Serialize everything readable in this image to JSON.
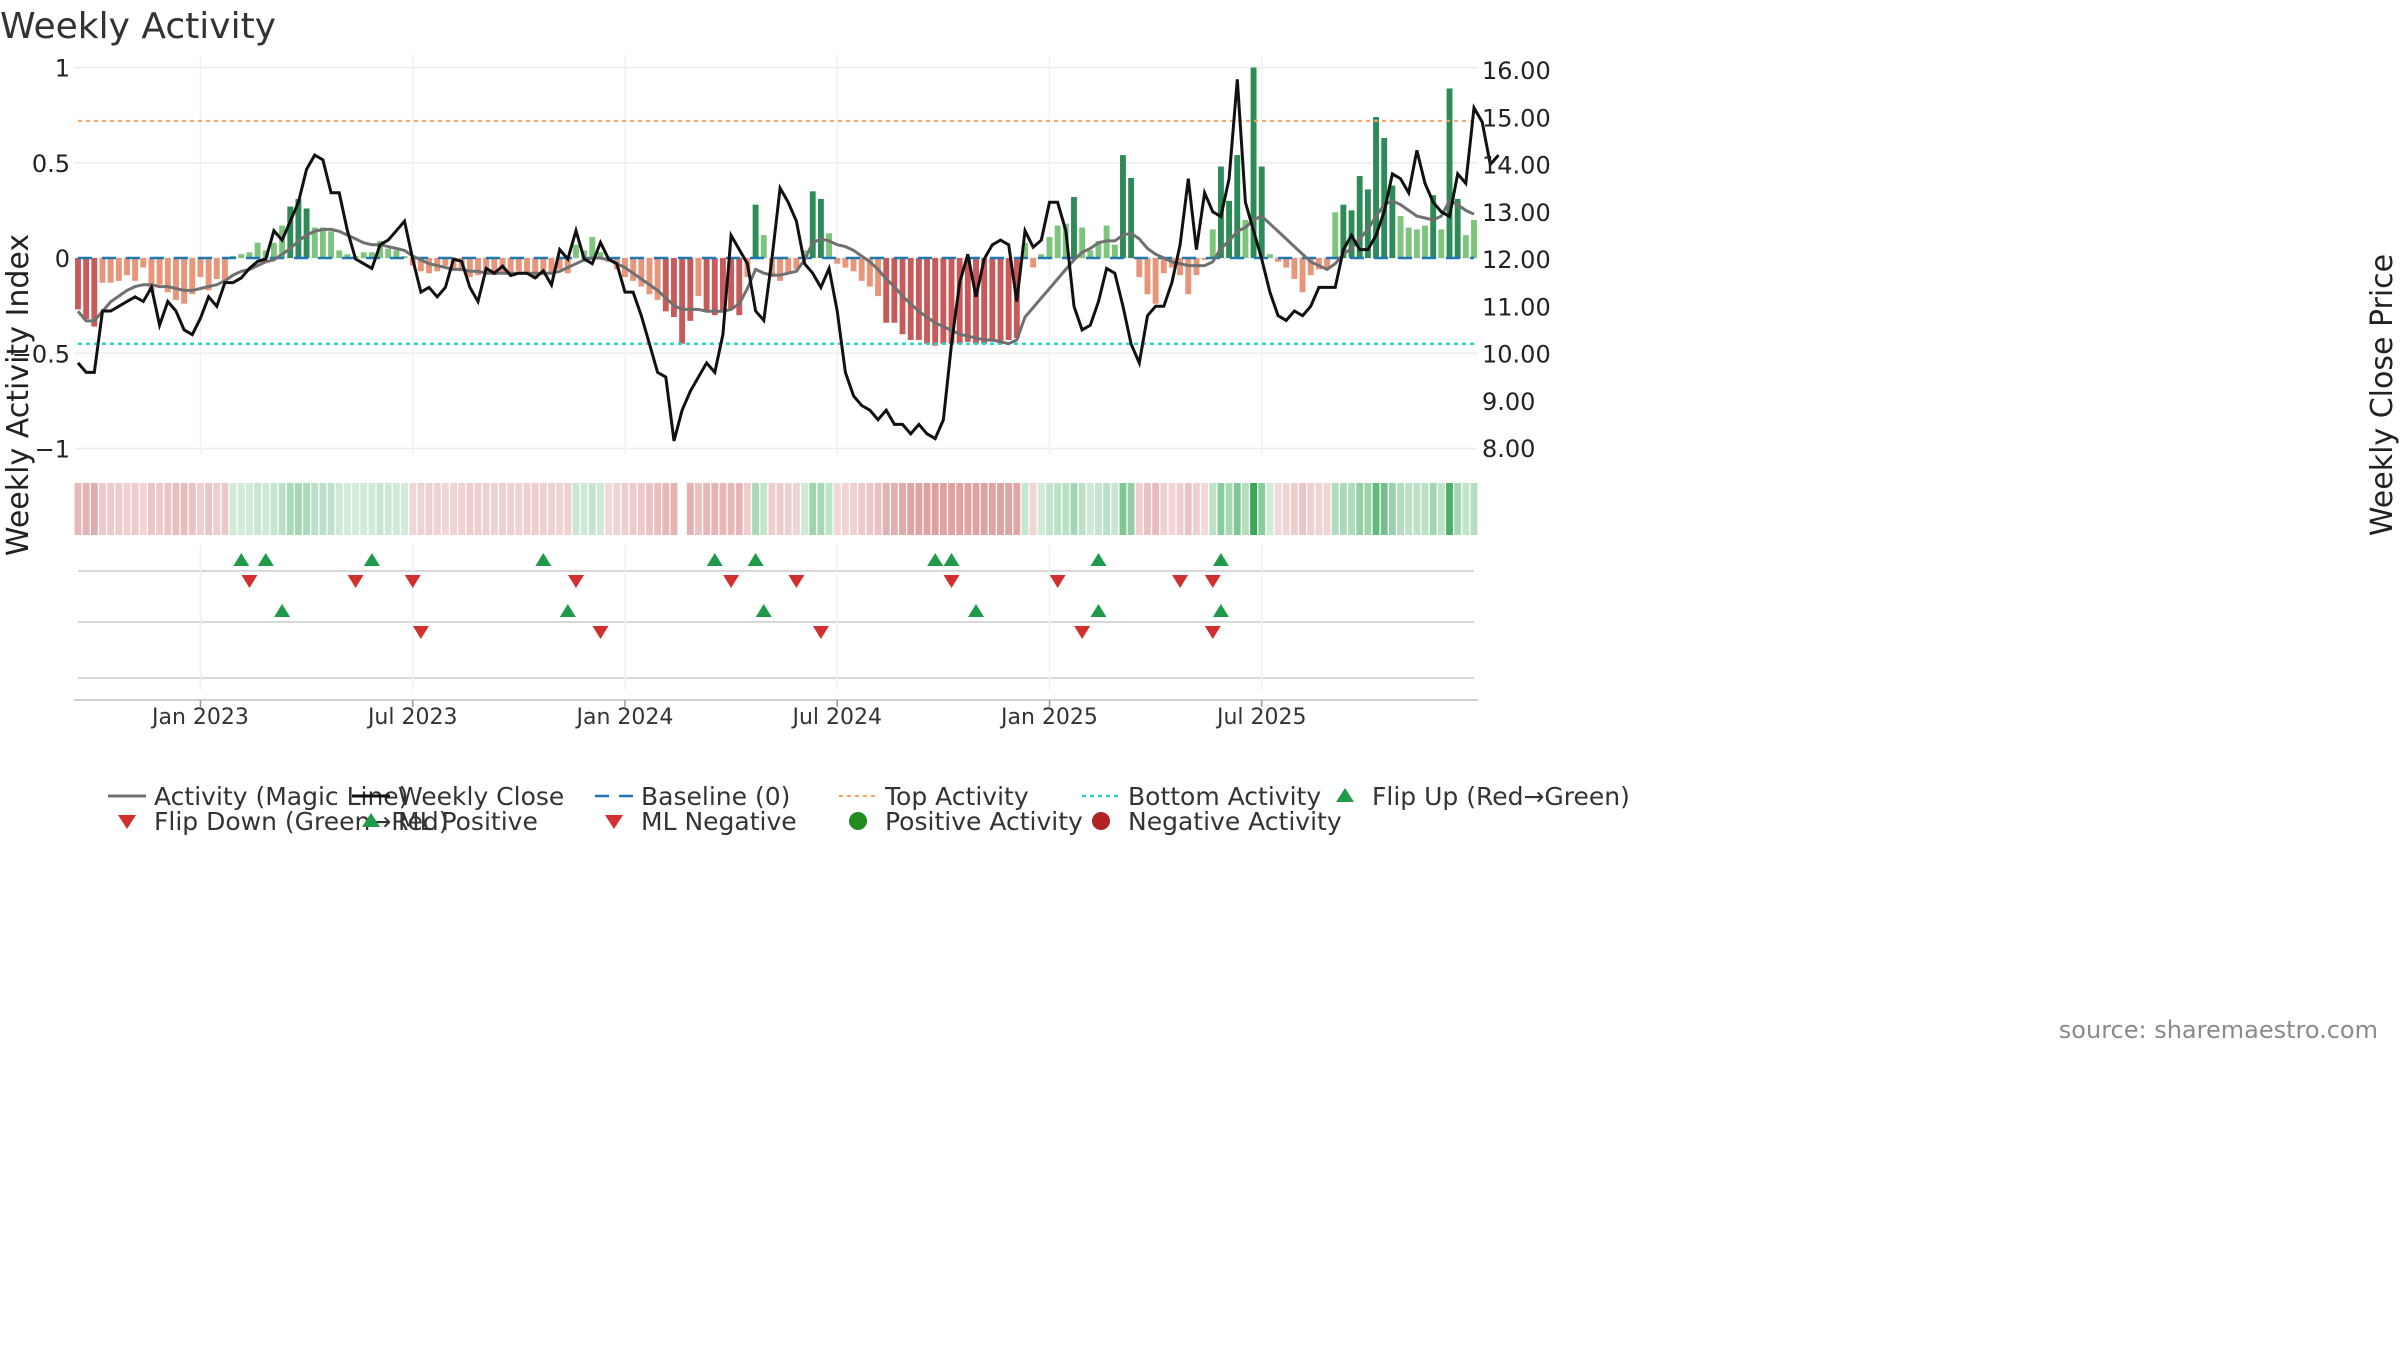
{
  "chart_data": {
    "type": "bar",
    "title": "Weekly Activity",
    "ylabel_left": "Weekly Activity Index",
    "ylabel_right": "Weekly Close Price",
    "left_ticks": [
      {
        "value": 1,
        "label": "1"
      },
      {
        "value": 0.5,
        "label": "0.5"
      },
      {
        "value": 0,
        "label": "0"
      },
      {
        "value": -0.5,
        "label": "−0.5"
      },
      {
        "value": -1,
        "label": "−1"
      }
    ],
    "right_ticks": [
      {
        "value": 16,
        "label": "16.00"
      },
      {
        "value": 15,
        "label": "15.00"
      },
      {
        "value": 14,
        "label": "14.00"
      },
      {
        "value": 13,
        "label": "13.00"
      },
      {
        "value": 12,
        "label": "12.00"
      },
      {
        "value": 11,
        "label": "11.00"
      },
      {
        "value": 10,
        "label": "10.00"
      },
      {
        "value": 9,
        "label": "9.00"
      },
      {
        "value": 8,
        "label": "8.00"
      }
    ],
    "left_ylim": [
      -1.08,
      1.05
    ],
    "right_ylim": [
      7.7,
      16.3
    ],
    "x_ticks": [
      {
        "week": 15,
        "label": "Jan 2023"
      },
      {
        "week": 41,
        "label": "Jul 2023"
      },
      {
        "week": 67,
        "label": "Jan 2024"
      },
      {
        "week": 93,
        "label": "Jul 2024"
      },
      {
        "week": 119,
        "label": "Jan 2025"
      },
      {
        "week": 145,
        "label": "Jul 2025"
      }
    ],
    "top_activity": 0.72,
    "bottom_activity": -0.45,
    "activity": [
      -0.27,
      -0.32,
      -0.36,
      -0.13,
      -0.13,
      -0.12,
      -0.09,
      -0.12,
      -0.05,
      -0.18,
      -0.14,
      -0.18,
      -0.22,
      -0.24,
      -0.19,
      -0.1,
      -0.17,
      -0.11,
      -0.13,
      0.01,
      0.02,
      0.03,
      0.08,
      0.04,
      0.08,
      0.17,
      0.27,
      0.31,
      0.26,
      0.16,
      0.16,
      0.14,
      0.04,
      0.02,
      0.01,
      0.03,
      0.03,
      0.09,
      0.05,
      0.04,
      0.01,
      -0.04,
      -0.07,
      -0.08,
      -0.07,
      -0.04,
      -0.06,
      -0.07,
      -0.1,
      -0.09,
      -0.08,
      -0.09,
      -0.08,
      -0.09,
      -0.07,
      -0.08,
      -0.11,
      -0.09,
      -0.08,
      -0.06,
      -0.08,
      0.07,
      0.04,
      0.11,
      0.03,
      -0.02,
      -0.06,
      -0.1,
      -0.12,
      -0.15,
      -0.19,
      -0.22,
      -0.28,
      -0.31,
      -0.45,
      -0.33,
      -0.2,
      -0.28,
      -0.3,
      -0.28,
      -0.27,
      -0.3,
      -0.1,
      0.28,
      0.12,
      -0.1,
      -0.12,
      -0.08,
      -0.06,
      0.04,
      0.35,
      0.31,
      0.13,
      -0.03,
      -0.05,
      -0.07,
      -0.12,
      -0.15,
      -0.2,
      -0.34,
      -0.34,
      -0.4,
      -0.43,
      -0.43,
      -0.45,
      -0.46,
      -0.45,
      -0.45,
      -0.45,
      -0.44,
      -0.45,
      -0.45,
      -0.44,
      -0.45,
      -0.43,
      -0.42,
      0.08,
      -0.05,
      0.02,
      0.11,
      0.17,
      0.18,
      0.32,
      0.16,
      0.04,
      0.09,
      0.17,
      0.07,
      0.54,
      0.42,
      -0.1,
      -0.19,
      -0.24,
      -0.08,
      -0.05,
      -0.09,
      -0.19,
      -0.09,
      -0.01,
      0.15,
      0.48,
      0.3,
      0.54,
      0.2,
      1.0,
      0.48,
      0.02,
      -0.02,
      -0.05,
      -0.11,
      -0.18,
      -0.09,
      -0.06,
      -0.05,
      0.24,
      0.28,
      0.25,
      0.43,
      0.36,
      0.74,
      0.63,
      0.38,
      0.22,
      0.16,
      0.15,
      0.17,
      0.33,
      0.15,
      0.89,
      0.31,
      0.12,
      0.2
    ],
    "close": [
      9.8,
      9.6,
      9.6,
      10.9,
      10.9,
      11.0,
      11.1,
      11.2,
      11.1,
      11.4,
      10.6,
      11.1,
      10.9,
      10.5,
      10.4,
      10.75,
      11.2,
      11.0,
      11.5,
      11.5,
      11.6,
      11.8,
      11.95,
      12.0,
      12.6,
      12.4,
      12.8,
      13.2,
      13.9,
      14.2,
      14.1,
      13.4,
      13.4,
      12.6,
      12.0,
      11.9,
      11.8,
      12.3,
      12.4,
      12.6,
      12.8,
      12.0,
      11.3,
      11.4,
      11.2,
      11.4,
      12.0,
      11.95,
      11.4,
      11.1,
      11.8,
      11.7,
      11.85,
      11.65,
      11.7,
      11.7,
      11.6,
      11.75,
      11.45,
      12.2,
      12.0,
      12.6,
      12.0,
      11.9,
      12.35,
      12.0,
      11.9,
      11.3,
      11.3,
      10.8,
      10.2,
      9.6,
      9.5,
      8.15,
      8.8,
      9.2,
      9.5,
      9.8,
      9.6,
      10.4,
      12.5,
      12.2,
      11.9,
      10.9,
      10.7,
      12.0,
      13.5,
      13.2,
      12.8,
      11.9,
      11.7,
      11.4,
      11.8,
      10.9,
      9.6,
      9.1,
      8.9,
      8.8,
      8.6,
      8.8,
      8.5,
      8.5,
      8.3,
      8.5,
      8.3,
      8.2,
      8.6,
      10.2,
      11.5,
      12.1,
      11.2,
      12.0,
      12.3,
      12.4,
      12.3,
      11.1,
      12.6,
      12.25,
      12.4,
      13.2,
      13.2,
      12.6,
      11.0,
      10.5,
      10.6,
      11.1,
      11.8,
      11.7,
      11.0,
      10.2,
      9.8,
      10.8,
      11.0,
      11.0,
      11.5,
      12.3,
      13.7,
      12.2,
      13.4,
      13.0,
      12.9,
      13.7,
      15.8,
      13.2,
      12.6,
      12.0,
      11.3,
      10.8,
      10.7,
      10.9,
      10.8,
      11.0,
      11.4,
      11.4,
      11.4,
      12.2,
      12.5,
      12.2,
      12.2,
      12.5,
      13.0,
      13.8,
      13.7,
      13.4,
      14.3,
      13.6,
      13.2,
      13.0,
      12.9,
      13.8,
      13.6,
      15.2,
      14.9,
      14.0,
      14.2
    ],
    "magic_line": [
      -0.28,
      -0.33,
      -0.33,
      -0.28,
      -0.23,
      -0.2,
      -0.17,
      -0.15,
      -0.14,
      -0.14,
      -0.15,
      -0.15,
      -0.16,
      -0.17,
      -0.17,
      -0.16,
      -0.15,
      -0.14,
      -0.12,
      -0.09,
      -0.07,
      -0.06,
      -0.04,
      -0.02,
      -0.01,
      0.02,
      0.05,
      0.09,
      0.12,
      0.14,
      0.15,
      0.15,
      0.14,
      0.12,
      0.1,
      0.08,
      0.07,
      0.07,
      0.06,
      0.05,
      0.04,
      0.01,
      -0.01,
      -0.03,
      -0.04,
      -0.05,
      -0.06,
      -0.06,
      -0.07,
      -0.07,
      -0.08,
      -0.08,
      -0.08,
      -0.08,
      -0.08,
      -0.08,
      -0.08,
      -0.08,
      -0.08,
      -0.07,
      -0.05,
      -0.03,
      -0.01,
      0.0,
      0.0,
      -0.01,
      -0.03,
      -0.05,
      -0.08,
      -0.11,
      -0.14,
      -0.17,
      -0.21,
      -0.25,
      -0.27,
      -0.27,
      -0.27,
      -0.28,
      -0.28,
      -0.28,
      -0.27,
      -0.24,
      -0.16,
      -0.06,
      -0.08,
      -0.09,
      -0.09,
      -0.08,
      -0.07,
      -0.01,
      0.08,
      0.1,
      0.09,
      0.07,
      0.06,
      0.04,
      0.01,
      -0.02,
      -0.06,
      -0.11,
      -0.15,
      -0.2,
      -0.24,
      -0.28,
      -0.31,
      -0.34,
      -0.36,
      -0.38,
      -0.4,
      -0.41,
      -0.42,
      -0.43,
      -0.43,
      -0.44,
      -0.45,
      -0.43,
      -0.31,
      -0.26,
      -0.21,
      -0.16,
      -0.11,
      -0.06,
      -0.01,
      0.03,
      0.05,
      0.08,
      0.09,
      0.09,
      0.12,
      0.13,
      0.1,
      0.05,
      0.02,
      0.0,
      -0.02,
      -0.03,
      -0.04,
      -0.04,
      -0.04,
      -0.02,
      0.05,
      0.09,
      0.14,
      0.16,
      0.2,
      0.22,
      0.18,
      0.14,
      0.1,
      0.06,
      0.02,
      -0.02,
      -0.04,
      -0.06,
      -0.03,
      0.02,
      0.05,
      0.1,
      0.15,
      0.22,
      0.28,
      0.3,
      0.28,
      0.25,
      0.22,
      0.21,
      0.2,
      0.22,
      0.3,
      0.28,
      0.25,
      0.23
    ],
    "heat_gap_week": 74,
    "flip_up_weeks": [
      20,
      23,
      36,
      57,
      78,
      83,
      105,
      107,
      125,
      140
    ],
    "flip_down_weeks": [
      21,
      34,
      41,
      61,
      80,
      88,
      107,
      120,
      135,
      139
    ],
    "ml_positive_weeks": [
      25,
      60,
      84,
      110,
      125,
      140
    ],
    "ml_negative_weeks": [
      42,
      64,
      91,
      123,
      139
    ],
    "source": "source: sharemaestro.com",
    "legend": {
      "magic_line": "Activity (Magic Line)",
      "weekly_close": "Weekly Close",
      "baseline": "Baseline (0)",
      "top_activity": "Top Activity",
      "bottom_activity": "Bottom Activity",
      "flip_up": "Flip Up (Red→Green)",
      "flip_down": "Flip Down (Green→Red)",
      "ml_positive": "ML Positive",
      "ml_negative": "ML Negative",
      "positive_activity": "Positive Activity",
      "negative_activity": "Negative Activity"
    }
  },
  "colors": {
    "strong_green": "#2e8b57",
    "light_green": "#7dc47d",
    "strong_red": "#c85a5a",
    "light_red": "#e8957a",
    "close_line": "#111111",
    "magic_line": "#707070",
    "baseline": "#1f77b4",
    "top_activity": "#f4a460",
    "bottom_activity": "#2ad4cf",
    "up_marker": "#1e9a48",
    "down_marker": "#d32f2f",
    "positive_dot": "#228b22",
    "negative_dot": "#b22222"
  }
}
